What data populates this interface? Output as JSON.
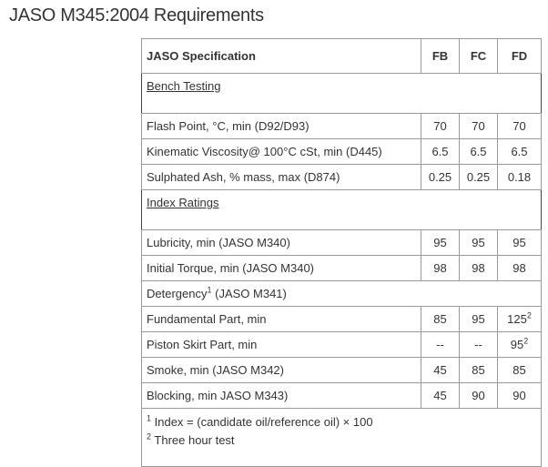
{
  "title": "JASO M345:2004 Requirements",
  "header": {
    "spec": "JASO Specification",
    "cols": [
      "FB",
      "FC",
      "FD"
    ]
  },
  "sections": {
    "bench": "Bench Testing",
    "index": "Index Ratings"
  },
  "rows": {
    "flash": {
      "label": "Flash Point, °C, min (D92/D93)",
      "v": [
        "70",
        "70",
        "70"
      ]
    },
    "visc": {
      "label": "Kinematic Viscosity@ 100°C cSt, min (D445)",
      "v": [
        "6.5",
        "6.5",
        "6.5"
      ]
    },
    "ash": {
      "label": "Sulphated Ash, % mass, max (D874)",
      "v": [
        "0.25",
        "0.25",
        "0.18"
      ]
    },
    "lub": {
      "label": "Lubricity, min (JASO M340)",
      "v": [
        "95",
        "95",
        "95"
      ]
    },
    "torque": {
      "label": "Initial Torque, min (JASO M340)",
      "v": [
        "98",
        "98",
        "98"
      ]
    },
    "det": {
      "label": "Detergency",
      "sup": "1",
      "suffix": " (JASO M341)"
    },
    "fund": {
      "label": "Fundamental Part, min",
      "v": [
        "85",
        "95",
        "125"
      ],
      "fd_sup": "2"
    },
    "piston": {
      "label": "Piston Skirt Part, min",
      "v": [
        "--",
        "--",
        "95"
      ],
      "fd_sup": "2"
    },
    "smoke": {
      "label": "Smoke, min (JASO M342)",
      "v": [
        "45",
        "85",
        "85"
      ]
    },
    "block": {
      "label": "Blocking, min JASO M343)",
      "v": [
        "45",
        "90",
        "90"
      ]
    }
  },
  "footnotes": [
    {
      "mark": "1",
      "text": " Index = (candidate oil/reference oil) × 100"
    },
    {
      "mark": "2",
      "text": " Three hour test"
    }
  ]
}
